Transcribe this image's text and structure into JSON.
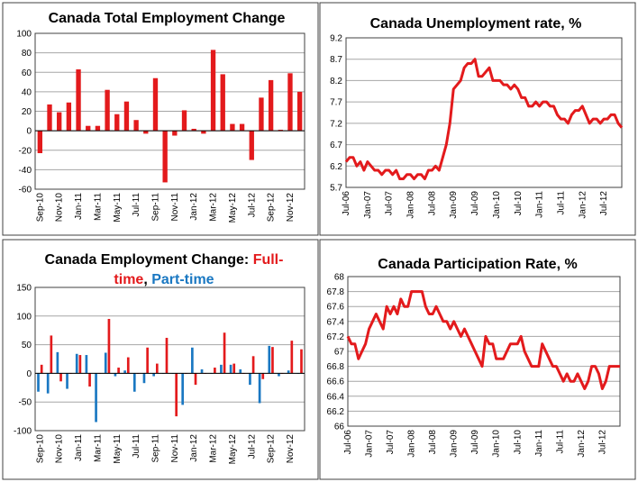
{
  "colors": {
    "red": "#e31a1c",
    "blue": "#1a78c2",
    "grid": "#a6a6a6",
    "border": "#404040"
  },
  "chart_data": [
    {
      "type": "bar",
      "title": "Canada Total Employment Change",
      "ylim": [
        -60,
        100
      ],
      "yticks": [
        "100",
        "80",
        "60",
        "40",
        "20",
        "0",
        "-20",
        "-40",
        "-60"
      ],
      "xlabels": [
        "Sep-10",
        "Nov-10",
        "Jan-11",
        "Mar-11",
        "May-11",
        "Jul-11",
        "Sep-11",
        "Nov-11",
        "Jan-12",
        "Mar-12",
        "May-12",
        "Jul-12",
        "Sep-12",
        "Nov-12"
      ],
      "series": [
        {
          "name": "Total employment change",
          "color": "#e31a1c",
          "values": [
            -23,
            27,
            19,
            29,
            63,
            5,
            5,
            42,
            17,
            30,
            11,
            -3,
            54,
            -53,
            -5,
            21,
            2,
            -3,
            83,
            58,
            7,
            7,
            -30,
            34,
            52,
            1,
            59,
            40
          ]
        }
      ]
    },
    {
      "type": "line",
      "title": "Canada Unemployment rate, %",
      "ylim": [
        5.7,
        9.2
      ],
      "yticks": [
        "9.2",
        "8.7",
        "8.2",
        "7.7",
        "7.2",
        "6.7",
        "6.2",
        "5.7"
      ],
      "xlabels": [
        "Jul-06",
        "Jan-07",
        "Jul-07",
        "Jan-08",
        "Jul-08",
        "Jan-09",
        "Jul-09",
        "Jan-10",
        "Jul-10",
        "Jan-11",
        "Jul-11",
        "Jan-12",
        "Jul-12"
      ],
      "series": [
        {
          "name": "Unemployment rate",
          "color": "#e31a1c",
          "values": [
            6.3,
            6.4,
            6.4,
            6.2,
            6.3,
            6.1,
            6.3,
            6.2,
            6.1,
            6.1,
            6.0,
            6.1,
            6.1,
            6.0,
            6.1,
            5.9,
            5.9,
            6.0,
            6.0,
            5.9,
            6.0,
            6.0,
            5.9,
            6.1,
            6.1,
            6.2,
            6.1,
            6.4,
            6.7,
            7.2,
            8.0,
            8.1,
            8.2,
            8.5,
            8.6,
            8.6,
            8.7,
            8.3,
            8.3,
            8.4,
            8.5,
            8.2,
            8.2,
            8.2,
            8.1,
            8.1,
            8.0,
            8.1,
            8.0,
            7.8,
            7.8,
            7.6,
            7.6,
            7.7,
            7.6,
            7.7,
            7.7,
            7.6,
            7.6,
            7.4,
            7.3,
            7.3,
            7.2,
            7.4,
            7.5,
            7.5,
            7.6,
            7.4,
            7.2,
            7.3,
            7.3,
            7.2,
            7.3,
            7.3,
            7.4,
            7.4,
            7.2,
            7.1
          ]
        }
      ]
    },
    {
      "type": "bar",
      "title_parts": [
        {
          "text": "Canada Employment Change: ",
          "color": "#000000"
        },
        {
          "text": "Full-",
          "color": "#e31a1c"
        }
      ],
      "title_parts_line2": [
        {
          "text": "time",
          "color": "#e31a1c"
        },
        {
          "text": ", ",
          "color": "#000000"
        },
        {
          "text": "Part-time",
          "color": "#1a78c2"
        }
      ],
      "ylim": [
        -100,
        150
      ],
      "yticks": [
        "150",
        "100",
        "50",
        "0",
        "-50",
        "-100"
      ],
      "xlabels": [
        "Sep-10",
        "Nov-10",
        "Jan-11",
        "Mar-11",
        "May-11",
        "Jul-11",
        "Sep-11",
        "Nov-11",
        "Jan-12",
        "Mar-12",
        "May-12",
        "Jul-12",
        "Sep-12",
        "Nov-12"
      ],
      "series": [
        {
          "name": "Full-time",
          "color": "#e31a1c",
          "values": [
            15,
            66,
            -14,
            0,
            32,
            -23,
            0,
            95,
            10,
            28,
            0,
            45,
            17,
            62,
            -75,
            0,
            -20,
            0,
            10,
            71,
            17,
            0,
            30,
            -10,
            46,
            0,
            57,
            42
          ]
        },
        {
          "name": "Part-time",
          "color": "#1a78c2",
          "values": [
            -32,
            -35,
            37,
            -27,
            34,
            32,
            -85,
            36,
            -5,
            5,
            -32,
            -17,
            -5,
            0,
            0,
            -55,
            45,
            7,
            0,
            15,
            15,
            7,
            -20,
            -52,
            48,
            -5,
            5,
            0
          ]
        }
      ]
    },
    {
      "type": "line",
      "title": "Canada Participation Rate, %",
      "ylim": [
        66,
        68
      ],
      "yticks": [
        "68",
        "67.8",
        "67.6",
        "67.4",
        "67.2",
        "67",
        "66.8",
        "66.6",
        "66.4",
        "66.2",
        "66"
      ],
      "xlabels": [
        "Jul-06",
        "Jan-07",
        "Jul-07",
        "Jan-08",
        "Jul-08",
        "Jan-09",
        "Jul-09",
        "Jan-10",
        "Jul-10",
        "Jan-11",
        "Jul-11",
        "Jan-12",
        "Jul-12"
      ],
      "series": [
        {
          "name": "Participation rate",
          "color": "#e31a1c",
          "values": [
            67.2,
            67.1,
            67.1,
            66.9,
            67.0,
            67.1,
            67.3,
            67.4,
            67.5,
            67.4,
            67.3,
            67.6,
            67.5,
            67.6,
            67.5,
            67.7,
            67.6,
            67.6,
            67.8,
            67.8,
            67.8,
            67.8,
            67.6,
            67.5,
            67.5,
            67.6,
            67.5,
            67.4,
            67.4,
            67.3,
            67.4,
            67.3,
            67.2,
            67.3,
            67.2,
            67.1,
            67.0,
            66.9,
            66.8,
            67.2,
            67.1,
            67.1,
            66.9,
            66.9,
            66.9,
            67.0,
            67.1,
            67.1,
            67.1,
            67.2,
            67.0,
            66.9,
            66.8,
            66.8,
            66.8,
            67.1,
            67.0,
            66.9,
            66.8,
            66.8,
            66.7,
            66.6,
            66.7,
            66.6,
            66.6,
            66.7,
            66.6,
            66.5,
            66.6,
            66.8,
            66.8,
            66.7,
            66.5,
            66.6,
            66.8,
            66.8,
            66.8,
            66.8
          ]
        }
      ]
    }
  ]
}
